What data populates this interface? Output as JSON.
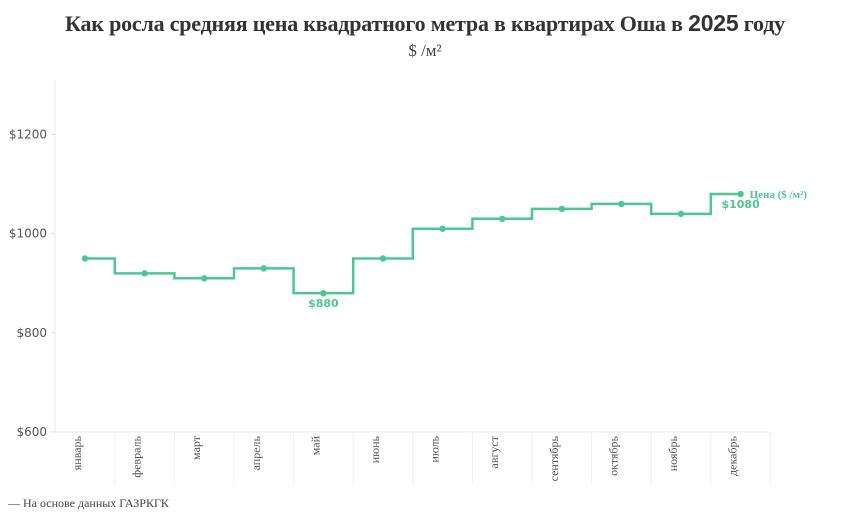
{
  "header": {
    "title_main": "Как росла средняя цена квадратного метра в квартирах Оша в ",
    "title_year": "2025",
    "title_end": " году",
    "subtitle": "$ /м²"
  },
  "footer": {
    "source": "— На основе данных ГАЗРКГК"
  },
  "colors": {
    "line": "#4cc794",
    "grid": "#eeeeee",
    "axis_text": "#555555",
    "title": "#333333"
  },
  "chart_data": {
    "type": "line",
    "step": true,
    "title": "Как росла средняя цена квадратного метра в квартирах Оша в 2025 году",
    "subtitle": "$ /м²",
    "xlabel": "",
    "ylabel": "",
    "categories": [
      "январь",
      "февраль",
      "март",
      "апрель",
      "май",
      "июнь",
      "июль",
      "август",
      "сентябрь",
      "октябрь",
      "ноябрь",
      "декабрь"
    ],
    "series": [
      {
        "name": "Цена ($ /м²)",
        "values": [
          950,
          920,
          910,
          930,
          880,
          950,
          1010,
          1030,
          1050,
          1060,
          1040,
          1080
        ]
      }
    ],
    "ylim": [
      600,
      1300
    ],
    "yticks": [
      600,
      800,
      1000,
      1200
    ],
    "ytick_labels": [
      "$600",
      "$800",
      "$1000",
      "$1200"
    ],
    "annotations": [
      {
        "category": "май",
        "value": 880,
        "text": "$880"
      },
      {
        "category": "декабрь",
        "value": 1080,
        "text": "$1080"
      }
    ],
    "legend": {
      "label": "Цена ($ /м²)",
      "position": "inline-end"
    },
    "grid": false
  }
}
